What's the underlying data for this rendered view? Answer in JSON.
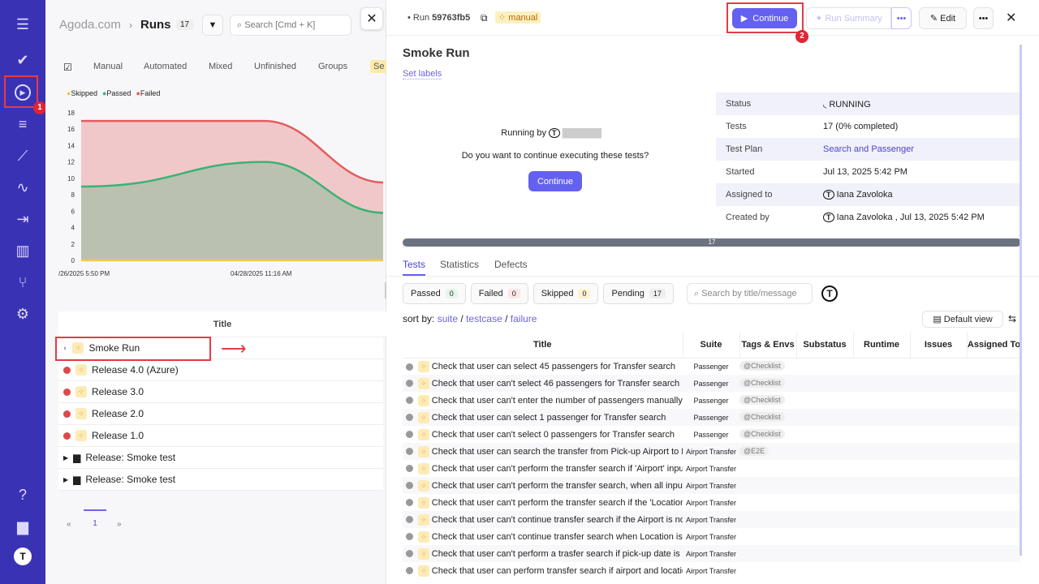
{
  "sidebar": {
    "items": [
      "menu-icon",
      "check-icon",
      "runs-icon",
      "plans-icon",
      "steps-icon",
      "pulse-icon",
      "import-icon",
      "analytics-icon",
      "branch-icon",
      "settings-icon"
    ],
    "bottom": [
      "help-icon",
      "folder-icon",
      "avatar"
    ]
  },
  "left": {
    "project": "Agoda.com",
    "sep": "›",
    "title": "Runs",
    "count": "17",
    "search_placeholder": "Search [Cmd + K]",
    "tabs": [
      "Manual",
      "Automated",
      "Mixed",
      "Unfinished",
      "Groups",
      "Se"
    ],
    "legend": [
      "Skipped",
      "Passed",
      "Failed"
    ],
    "table_header": "Title",
    "runs": [
      {
        "title": "Smoke Run",
        "status": "running"
      },
      {
        "title": "Release 4.0 (Azure)",
        "status": "failed"
      },
      {
        "title": "Release 3.0",
        "status": "failed"
      },
      {
        "title": "Release 2.0",
        "status": "failed"
      },
      {
        "title": "Release 1.0",
        "status": "failed"
      }
    ],
    "groups": [
      "Release: Smoke test",
      "Release: Smoke test"
    ],
    "pagination": {
      "prev": "«",
      "page": "1",
      "next": "»"
    }
  },
  "chart_data": {
    "type": "area",
    "x": [
      "/26/2025 5:50 PM",
      "04/28/2025 11:16 AM",
      ""
    ],
    "ylim": [
      0,
      18
    ],
    "yticks": [
      0,
      2,
      4,
      6,
      8,
      10,
      12,
      14,
      16,
      18
    ],
    "series": [
      {
        "name": "Skipped",
        "color": "#f2c94c",
        "values": [
          0,
          0,
          0
        ]
      },
      {
        "name": "Passed",
        "color": "#3bb273",
        "values": [
          9,
          12,
          5.8
        ]
      },
      {
        "name": "Failed",
        "color": "#e35d5d",
        "values": [
          17,
          17,
          9.5
        ]
      }
    ],
    "legend": "top-left"
  },
  "annotations": {
    "badge1": "1",
    "badge2": "2"
  },
  "right": {
    "run_label": "Run",
    "run_id": "59763fb5",
    "type_badge": "manual",
    "continue": "Continue",
    "run_summary": "Run Summary",
    "more": "•••",
    "edit": "Edit",
    "title": "Smoke Run",
    "set_labels": "Set labels",
    "running_by": "Running by",
    "prompt": "Do you want to continue executing these tests?",
    "continue2": "Continue",
    "details": [
      {
        "k": "Status",
        "v": "RUNNING"
      },
      {
        "k": "Tests",
        "v": "17 (0% completed)"
      },
      {
        "k": "Test Plan",
        "v": "Search and Passenger"
      },
      {
        "k": "Started",
        "v": "Jul 13, 2025 5:42 PM"
      },
      {
        "k": "Assigned to",
        "v": "Iana Zavoloka"
      },
      {
        "k": "Created by",
        "v": "Iana Zavoloka , Jul 13, 2025 5:42 PM"
      }
    ],
    "progress_label": "17",
    "progress": 0,
    "tabs": [
      "Tests",
      "Statistics",
      "Defects"
    ],
    "filters": [
      {
        "label": "Passed",
        "count": "0"
      },
      {
        "label": "Failed",
        "count": "0"
      },
      {
        "label": "Skipped",
        "count": "0"
      },
      {
        "label": "Pending",
        "count": "17"
      }
    ],
    "search_placeholder": "Search by title/message",
    "sort": {
      "label": "sort by:",
      "opts": [
        "suite",
        "testcase",
        "failure"
      ]
    },
    "view": "Default view",
    "columns": [
      "Title",
      "Suite",
      "Tags & Envs",
      "Substatus",
      "Runtime",
      "Issues",
      "Assigned To"
    ],
    "tests": [
      {
        "t": "Check that user can select 45 passengers for Transfer search",
        "s": "Passenger",
        "tag": "@Checklist"
      },
      {
        "t": "Check that user can't select 46 passengers for Transfer search",
        "s": "Passenger",
        "tag": "@Checklist"
      },
      {
        "t": "Check that user can't enter the number of passengers manually",
        "s": "Passenger",
        "tag": "@Checklist"
      },
      {
        "t": "Check that user can select 1 passenger for Transfer search",
        "s": "Passenger",
        "tag": "@Checklist"
      },
      {
        "t": "Check that user can't select 0 passengers for Transfer search",
        "s": "Passenger",
        "tag": "@Checklist"
      },
      {
        "t": "Check that user can search the transfer from Pick-up Airport to De",
        "s": "Airport Transfer",
        "tag": "@E2E"
      },
      {
        "t": "Check that user can't perform the transfer search if 'Airport' input",
        "s": "Airport Transfer",
        "tag": ""
      },
      {
        "t": "Check that user can't perform the transfer search, when all input fi",
        "s": "Airport Transfer",
        "tag": ""
      },
      {
        "t": "Check that user can't perform the transfer search if the 'Location'",
        "s": "Airport Transfer",
        "tag": ""
      },
      {
        "t": "Check that user can't continue transfer search if the Airport is not",
        "s": "Airport Transfer",
        "tag": ""
      },
      {
        "t": "Check that user can't continue transfer search when Location is nc",
        "s": "Airport Transfer",
        "tag": ""
      },
      {
        "t": "Check that user can't perform a trasfer search if pick-up date is nc",
        "s": "Airport Transfer",
        "tag": ""
      },
      {
        "t": "Check that user can perform transfer search if airport and location",
        "s": "Airport Transfer",
        "tag": ""
      }
    ]
  }
}
